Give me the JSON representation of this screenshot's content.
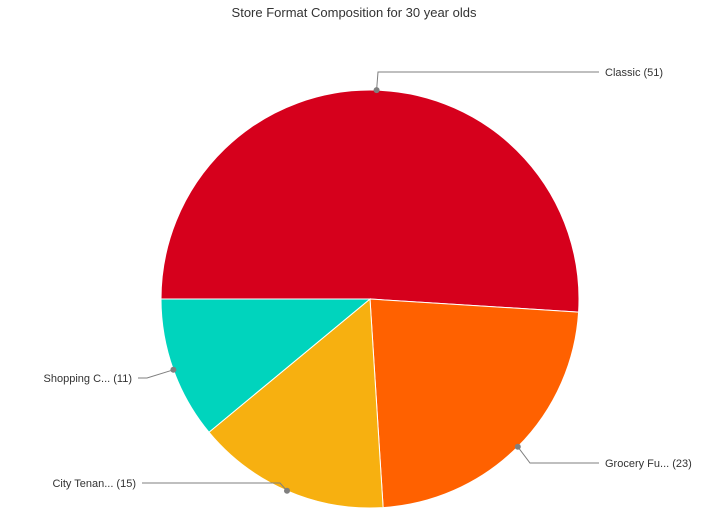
{
  "chart_data": {
    "type": "pie",
    "title": "Store Format Composition for 30 year olds",
    "slices": [
      {
        "label": "Classic",
        "value": 51,
        "display": "Classic (51)",
        "color": "#d6001c"
      },
      {
        "label": "Grocery Fu...",
        "value": 23,
        "display": "Grocery Fu... (23)",
        "color": "#ff6100"
      },
      {
        "label": "City Tenan...",
        "value": 15,
        "display": "City Tenan... (15)",
        "color": "#f7b010"
      },
      {
        "label": "Shopping C...",
        "value": 11,
        "display": "Shopping C... (11)",
        "color": "#00d4bd"
      }
    ],
    "start_direction": "left",
    "slice_order": "clockwise",
    "legend": "none",
    "label_style": "callout"
  }
}
